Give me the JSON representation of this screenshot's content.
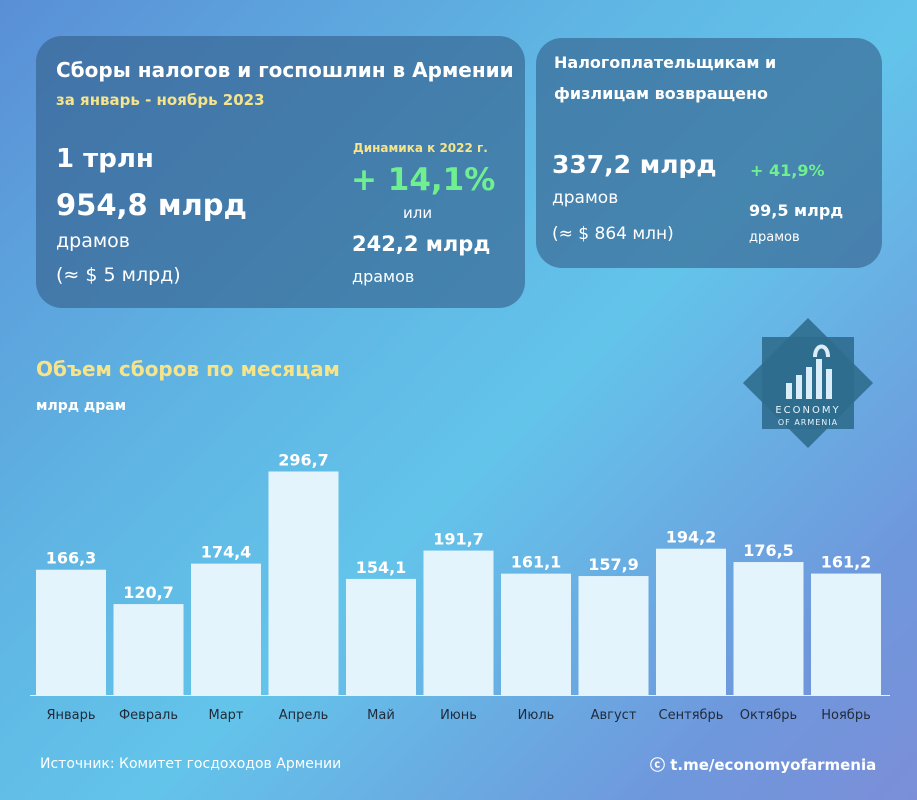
{
  "left_card": {
    "title": "Сборы налогов и госпошлин в Армении",
    "subtitle": "за январь - ноябрь 2023",
    "total_line1": "1 трлн",
    "total_line2": "954,8 млрд",
    "total_unit": "драмов",
    "total_usd": "(≈ $ 5 млрд)",
    "dynamics_label": "Динамика к 2022 г.",
    "dynamics_pct": "+ 14,1%",
    "dynamics_or": "или",
    "dynamics_abs": "242,2 млрд",
    "dynamics_unit": "драмов"
  },
  "right_card": {
    "title_line1": "Налогоплательщикам и",
    "title_line2": "физлицам возвращено",
    "amount": "337,2 млрд",
    "amount_unit": "драмов",
    "amount_usd": "(≈ $ 864 млн)",
    "growth_pct": "+ 41,9%",
    "growth_abs": "99,5 млрд",
    "growth_unit": "драмов"
  },
  "chart_data": {
    "type": "bar",
    "title": "Объем сборов по месяцам",
    "ylabel": "млрд драм",
    "categories": [
      "Январь",
      "Февраль",
      "Март",
      "Апрель",
      "Май",
      "Июнь",
      "Июль",
      "Август",
      "Сентябрь",
      "Октябрь",
      "Ноябрь"
    ],
    "values": [
      166.3,
      120.7,
      174.4,
      296.7,
      154.1,
      191.7,
      161.1,
      157.9,
      194.2,
      176.5,
      161.2
    ],
    "value_labels": [
      "166,3",
      "120,7",
      "174,4",
      "296,7",
      "154,1",
      "191,7",
      "161,1",
      "157,9",
      "194,2",
      "176,5",
      "161,2"
    ],
    "ylim": [
      0,
      300
    ],
    "grid": false,
    "bar_color": "#e4f4fd"
  },
  "logo": {
    "line1": "ECONOMY",
    "line2": "OF ARMENIA"
  },
  "footer": {
    "source": "Источник: Комитет госдоходов Армении",
    "channel": "ⓒ t.me/economyofarmenia"
  }
}
